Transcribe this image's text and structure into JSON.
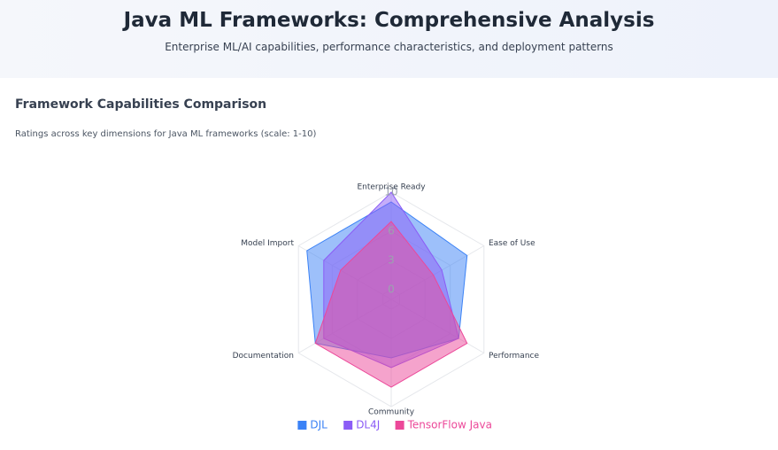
{
  "header": {
    "title": "Java ML Frameworks: Comprehensive Analysis",
    "subtitle": "Enterprise ML/AI capabilities, performance characteristics, and deployment patterns"
  },
  "chart_data": {
    "type": "radar",
    "title": "Framework Capabilities Comparison",
    "subtitle": "Ratings across key dimensions for Java ML frameworks (scale: 1-10)",
    "categories": [
      "Enterprise Ready",
      "Ease of Use",
      "Performance",
      "Community",
      "Documentation",
      "Model Import"
    ],
    "rlim": [
      -1,
      10
    ],
    "rticks": [
      0,
      3,
      6,
      10
    ],
    "grid": true,
    "series": [
      {
        "name": "DJL",
        "color": "#3b82f6",
        "values": [
          9,
          8,
          7,
          5,
          8,
          9
        ]
      },
      {
        "name": "DL4J",
        "color": "#8b5cf6",
        "values": [
          10,
          5,
          7,
          6,
          7,
          7
        ]
      },
      {
        "name": "TensorFlow Java",
        "color": "#ec4899",
        "values": [
          7,
          4,
          8,
          8,
          8,
          5
        ]
      }
    ]
  }
}
